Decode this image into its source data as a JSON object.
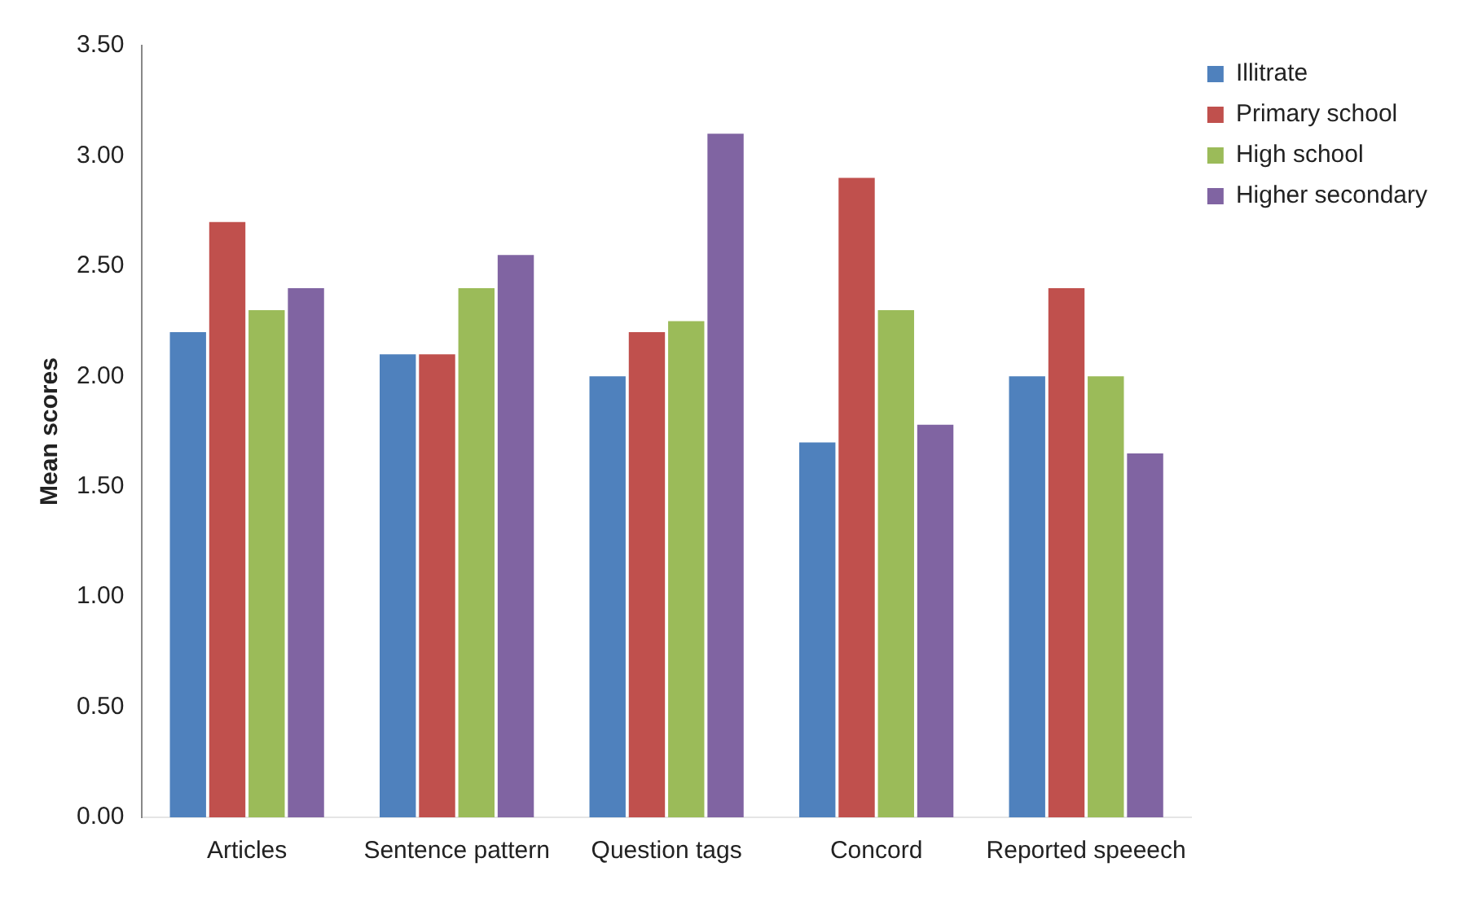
{
  "chart_data": {
    "type": "bar",
    "ylabel": "Mean scores",
    "categories": [
      "Articles",
      "Sentence pattern",
      "Question tags",
      "Concord",
      "Reported speeech"
    ],
    "series": [
      {
        "name": "Illitrate",
        "color": "#4f81bd",
        "values": [
          2.2,
          2.1,
          2.0,
          1.7,
          2.0
        ]
      },
      {
        "name": "Primary school",
        "color": "#c0504d",
        "values": [
          2.7,
          2.1,
          2.2,
          2.9,
          2.4
        ]
      },
      {
        "name": "High school",
        "color": "#9bbb59",
        "values": [
          2.3,
          2.4,
          2.25,
          2.3,
          2.0
        ]
      },
      {
        "name": "Higher secondary",
        "color": "#8064a2",
        "values": [
          2.4,
          2.55,
          3.1,
          1.78,
          1.65
        ]
      }
    ],
    "ylim": [
      0,
      3.5
    ],
    "yticks": [
      {
        "value": 0,
        "label": "0.00"
      },
      {
        "value": 0.5,
        "label": "0.50"
      },
      {
        "value": 1,
        "label": "1.00"
      },
      {
        "value": 1.5,
        "label": "1.50"
      },
      {
        "value": 2,
        "label": "2.00"
      },
      {
        "value": 2.5,
        "label": "2.50"
      },
      {
        "value": 3,
        "label": "3.00"
      },
      {
        "value": 3.5,
        "label": "3.50"
      }
    ],
    "grid": false,
    "legend": "top right"
  }
}
